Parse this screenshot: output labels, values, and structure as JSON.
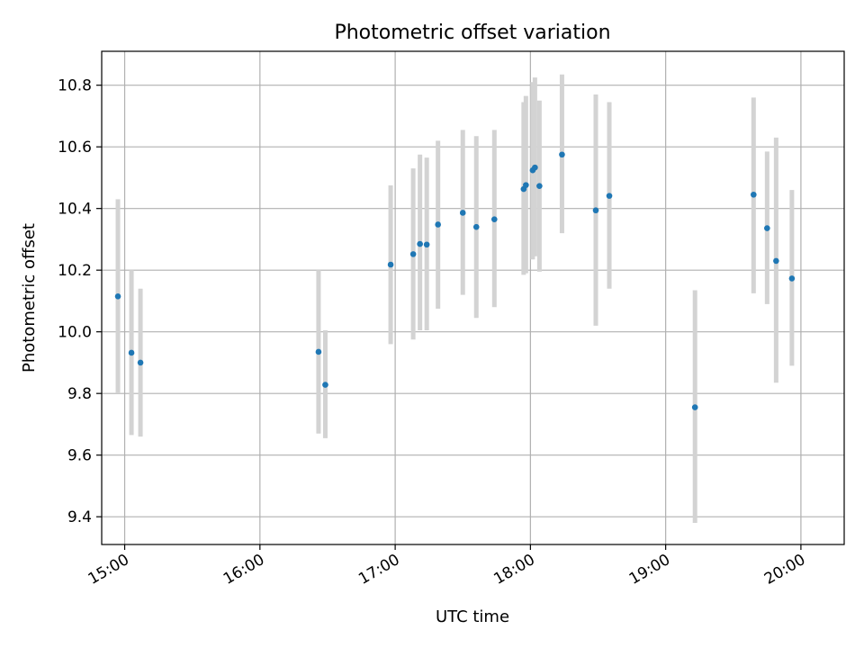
{
  "chart_data": {
    "type": "scatter",
    "title": "Photometric offset variation",
    "xlabel": "UTC time",
    "ylabel": "Photometric offset",
    "x_unit": "UTC time of day (hours)",
    "xlim": [
      14.83,
      20.32
    ],
    "ylim": [
      9.31,
      10.91
    ],
    "grid": true,
    "x_ticks": [
      {
        "value": 15.0,
        "label": "15:00"
      },
      {
        "value": 16.0,
        "label": "16:00"
      },
      {
        "value": 17.0,
        "label": "17:00"
      },
      {
        "value": 18.0,
        "label": "18:00"
      },
      {
        "value": 19.0,
        "label": "19:00"
      },
      {
        "value": 20.0,
        "label": "20:00"
      }
    ],
    "y_ticks": [
      {
        "value": 9.4,
        "label": "9.4"
      },
      {
        "value": 9.6,
        "label": "9.6"
      },
      {
        "value": 9.8,
        "label": "9.8"
      },
      {
        "value": 10.0,
        "label": "10.0"
      },
      {
        "value": 10.2,
        "label": "10.2"
      },
      {
        "value": 10.4,
        "label": "10.4"
      },
      {
        "value": 10.6,
        "label": "10.6"
      },
      {
        "value": 10.8,
        "label": "10.8"
      }
    ],
    "colors": {
      "point": "#1f77b4",
      "errorbar": "#d3d3d3",
      "grid": "#b0b0b0"
    },
    "points": [
      {
        "x": "14:57",
        "y": 10.115,
        "ylo": 9.8,
        "yhi": 10.43
      },
      {
        "x": "15:03",
        "y": 9.932,
        "ylo": 9.665,
        "yhi": 10.2
      },
      {
        "x": "15:07",
        "y": 9.9,
        "ylo": 9.66,
        "yhi": 10.14
      },
      {
        "x": "16:26",
        "y": 9.935,
        "ylo": 9.67,
        "yhi": 10.2
      },
      {
        "x": "16:29",
        "y": 9.828,
        "ylo": 9.655,
        "yhi": 10.005
      },
      {
        "x": "16:58",
        "y": 10.218,
        "ylo": 9.96,
        "yhi": 10.475
      },
      {
        "x": "17:08",
        "y": 10.252,
        "ylo": 9.975,
        "yhi": 10.53
      },
      {
        "x": "17:11",
        "y": 10.285,
        "ylo": 10.005,
        "yhi": 10.575
      },
      {
        "x": "17:14",
        "y": 10.283,
        "ylo": 10.005,
        "yhi": 10.565
      },
      {
        "x": "17:19",
        "y": 10.348,
        "ylo": 10.075,
        "yhi": 10.62
      },
      {
        "x": "17:30",
        "y": 10.386,
        "ylo": 10.12,
        "yhi": 10.655
      },
      {
        "x": "17:36",
        "y": 10.34,
        "ylo": 10.045,
        "yhi": 10.635
      },
      {
        "x": "17:44",
        "y": 10.365,
        "ylo": 10.08,
        "yhi": 10.655
      },
      {
        "x": "17:57",
        "y": 10.463,
        "ylo": 10.185,
        "yhi": 10.745
      },
      {
        "x": "17:58",
        "y": 10.476,
        "ylo": 10.19,
        "yhi": 10.765
      },
      {
        "x": "18:01",
        "y": 10.524,
        "ylo": 10.235,
        "yhi": 10.81
      },
      {
        "x": "18:02",
        "y": 10.533,
        "ylo": 10.245,
        "yhi": 10.825
      },
      {
        "x": "18:04",
        "y": 10.473,
        "ylo": 10.195,
        "yhi": 10.75
      },
      {
        "x": "18:14",
        "y": 10.575,
        "ylo": 10.32,
        "yhi": 10.835
      },
      {
        "x": "18:29",
        "y": 10.394,
        "ylo": 10.02,
        "yhi": 10.77
      },
      {
        "x": "18:35",
        "y": 10.441,
        "ylo": 10.14,
        "yhi": 10.745
      },
      {
        "x": "19:13",
        "y": 9.755,
        "ylo": 9.38,
        "yhi": 10.135
      },
      {
        "x": "19:39",
        "y": 10.445,
        "ylo": 10.125,
        "yhi": 10.76
      },
      {
        "x": "19:45",
        "y": 10.336,
        "ylo": 10.09,
        "yhi": 10.585
      },
      {
        "x": "19:49",
        "y": 10.23,
        "ylo": 9.835,
        "yhi": 10.63
      },
      {
        "x": "19:56",
        "y": 10.173,
        "ylo": 9.89,
        "yhi": 10.46
      }
    ]
  }
}
